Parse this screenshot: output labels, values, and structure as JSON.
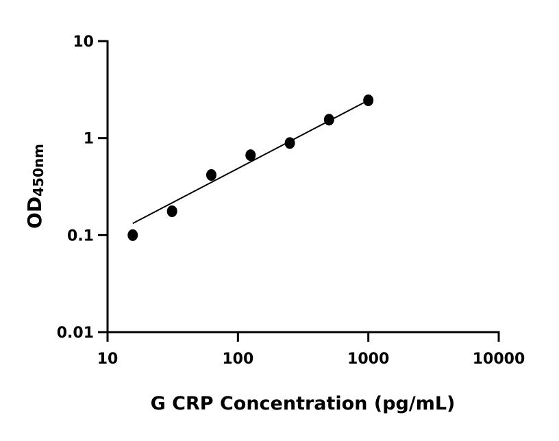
{
  "chart_data": {
    "type": "scatter",
    "title": "",
    "xlabel": "G CRP Concentration (pg/mL)",
    "ylabel": "OD",
    "ylabel_subscript": "450nm",
    "x_scale": "log",
    "y_scale": "log",
    "xlim": [
      10,
      10000
    ],
    "ylim": [
      0.01,
      10
    ],
    "x_ticks": [
      "10",
      "100",
      "1000",
      "10000"
    ],
    "y_ticks": [
      "0.01",
      "0.1",
      "1",
      "10"
    ],
    "grid": false,
    "series": [
      {
        "x": [
          15.6,
          31.25,
          62.5,
          125,
          250,
          500,
          1000
        ],
        "y": [
          0.1,
          0.176,
          0.417,
          0.667,
          0.89,
          1.55,
          2.45
        ],
        "marker": "circle",
        "color": "#000000"
      }
    ],
    "fit_line": {
      "x": [
        15.6,
        1000
      ],
      "y": [
        0.132,
        2.45
      ],
      "color": "#000000"
    }
  }
}
